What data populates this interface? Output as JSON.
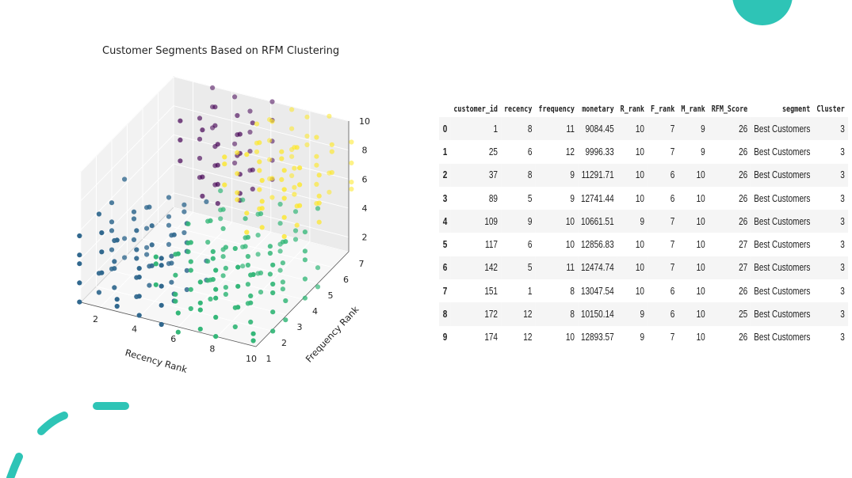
{
  "colors": {
    "accent": "#2ec4b6",
    "cluster_0": "#440154",
    "cluster_1": "#31688e",
    "cluster_2": "#35b779",
    "cluster_3": "#fde725"
  },
  "chart_data": {
    "type": "scatter",
    "title": "Customer Segments Based on RFM Clustering",
    "xlabel": "Recency Rank",
    "ylabel": "Frequency Rank",
    "zlabel": "",
    "xticks": [
      "2",
      "4",
      "6",
      "8",
      "10"
    ],
    "yticks": [
      "1",
      "2",
      "3",
      "4",
      "5",
      "6",
      "7"
    ],
    "zticks": [
      "2",
      "4",
      "6",
      "8",
      "10"
    ],
    "xlim": [
      1,
      10
    ],
    "ylim": [
      1,
      7
    ],
    "zlim": [
      1,
      10
    ],
    "projection": "3d",
    "grid": true,
    "series": [
      {
        "cluster": 0,
        "color": "#440154",
        "x_range": [
          3,
          6
        ],
        "y_range": [
          5,
          7
        ],
        "z_range": [
          5,
          10
        ]
      },
      {
        "cluster": 1,
        "color": "#31688e",
        "x_range": [
          1,
          5
        ],
        "y_range": [
          1,
          4
        ],
        "z_range": [
          1,
          6
        ]
      },
      {
        "cluster": 2,
        "color": "#35b779",
        "x_range": [
          5,
          10
        ],
        "y_range": [
          1,
          5
        ],
        "z_range": [
          1,
          6
        ]
      },
      {
        "cluster": 3,
        "color": "#fde725",
        "x_range": [
          6,
          10
        ],
        "y_range": [
          4,
          7
        ],
        "z_range": [
          5,
          10
        ]
      }
    ]
  },
  "table": {
    "columns": [
      "",
      "customer_id",
      "recency",
      "frequency",
      "monetary",
      "R_rank",
      "F_rank",
      "M_rank",
      "RFM_Score",
      "segment",
      "Cluster"
    ],
    "rows": [
      [
        "0",
        "1",
        "8",
        "11",
        "9084.45",
        "10",
        "7",
        "9",
        "26",
        "Best Customers",
        "3"
      ],
      [
        "1",
        "25",
        "6",
        "12",
        "9996.33",
        "10",
        "7",
        "9",
        "26",
        "Best Customers",
        "3"
      ],
      [
        "2",
        "37",
        "8",
        "9",
        "11291.71",
        "10",
        "6",
        "10",
        "26",
        "Best Customers",
        "3"
      ],
      [
        "3",
        "89",
        "5",
        "9",
        "12741.44",
        "10",
        "6",
        "10",
        "26",
        "Best Customers",
        "3"
      ],
      [
        "4",
        "109",
        "9",
        "10",
        "10661.51",
        "9",
        "7",
        "10",
        "26",
        "Best Customers",
        "3"
      ],
      [
        "5",
        "117",
        "6",
        "10",
        "12856.83",
        "10",
        "7",
        "10",
        "27",
        "Best Customers",
        "3"
      ],
      [
        "6",
        "142",
        "5",
        "11",
        "12474.74",
        "10",
        "7",
        "10",
        "27",
        "Best Customers",
        "3"
      ],
      [
        "7",
        "151",
        "1",
        "8",
        "13047.54",
        "10",
        "6",
        "10",
        "26",
        "Best Customers",
        "3"
      ],
      [
        "8",
        "172",
        "12",
        "8",
        "10150.14",
        "9",
        "6",
        "10",
        "25",
        "Best Customers",
        "3"
      ],
      [
        "9",
        "174",
        "12",
        "10",
        "12893.57",
        "9",
        "7",
        "10",
        "26",
        "Best Customers",
        "3"
      ]
    ]
  }
}
